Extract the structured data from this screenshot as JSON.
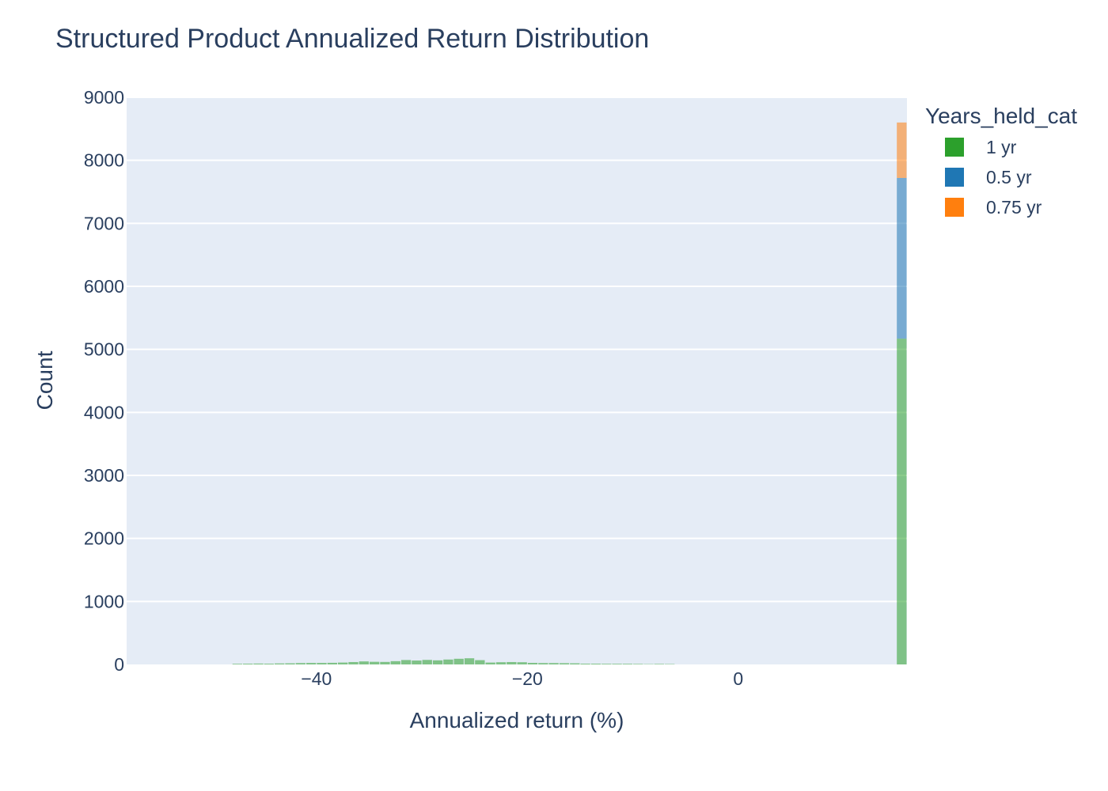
{
  "chart_data": {
    "type": "bar",
    "barmode": "stack",
    "title": "Structured Product Annualized Return Distribution",
    "xlabel": "Annualized return (%)",
    "ylabel": "Count",
    "xlim": [
      -58,
      16
    ],
    "ylim": [
      0,
      9000
    ],
    "x_ticks": [
      -40,
      -20,
      0
    ],
    "x_tick_labels": [
      "−40",
      "−20",
      "0"
    ],
    "y_ticks": [
      0,
      1000,
      2000,
      3000,
      4000,
      5000,
      6000,
      7000,
      8000,
      9000
    ],
    "bin_width": 1,
    "grid": true,
    "plot_background": "#e5ecf6",
    "bar_opacity": 0.55,
    "legend": {
      "title": "Years_held_cat",
      "placement": "right"
    },
    "series": [
      {
        "name": "1 yr",
        "color": "#2ca02c",
        "bins": [
          [
            -48,
            10
          ],
          [
            -47,
            12
          ],
          [
            -46,
            14
          ],
          [
            -45,
            12
          ],
          [
            -44,
            16
          ],
          [
            -43,
            18
          ],
          [
            -42,
            22
          ],
          [
            -41,
            24
          ],
          [
            -40,
            24
          ],
          [
            -39,
            26
          ],
          [
            -38,
            30
          ],
          [
            -37,
            38
          ],
          [
            -36,
            48
          ],
          [
            -35,
            42
          ],
          [
            -34,
            40
          ],
          [
            -33,
            52
          ],
          [
            -32,
            70
          ],
          [
            -31,
            62
          ],
          [
            -30,
            72
          ],
          [
            -29,
            65
          ],
          [
            -28,
            78
          ],
          [
            -27,
            90
          ],
          [
            -26,
            98
          ],
          [
            -25,
            68
          ],
          [
            -24,
            30
          ],
          [
            -23,
            35
          ],
          [
            -22,
            38
          ],
          [
            -21,
            35
          ],
          [
            -20,
            25
          ],
          [
            -19,
            22
          ],
          [
            -18,
            22
          ],
          [
            -17,
            20
          ],
          [
            -16,
            18
          ],
          [
            -15,
            12
          ],
          [
            -14,
            12
          ],
          [
            -13,
            10
          ],
          [
            -12,
            10
          ],
          [
            -11,
            10
          ],
          [
            -10,
            8
          ],
          [
            -9,
            5
          ],
          [
            -8,
            8
          ],
          [
            -7,
            6
          ],
          [
            15,
            5170
          ]
        ]
      },
      {
        "name": "0.5 yr",
        "color": "#1f77b4",
        "bins": [
          [
            15,
            2550
          ]
        ]
      },
      {
        "name": "0.75 yr",
        "color": "#ff7f0e",
        "bins": [
          [
            15,
            880
          ]
        ]
      }
    ]
  }
}
